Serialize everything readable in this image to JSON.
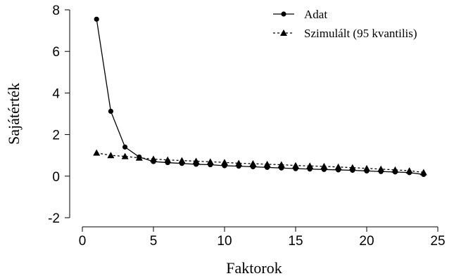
{
  "chart_data": {
    "type": "line",
    "xlabel": "Faktorok",
    "ylabel": "Sajátérték",
    "xlim": [
      0,
      25
    ],
    "ylim": [
      -2,
      8
    ],
    "xticks": [
      0,
      5,
      10,
      15,
      20,
      25
    ],
    "yticks": [
      -2,
      0,
      2,
      4,
      6,
      8
    ],
    "grid": false,
    "legend_position": "top-right",
    "x": [
      1,
      2,
      3,
      4,
      5,
      6,
      7,
      8,
      9,
      10,
      11,
      12,
      13,
      14,
      15,
      16,
      17,
      18,
      19,
      20,
      21,
      22,
      23,
      24
    ],
    "series": [
      {
        "name": "Adat",
        "marker": "circle",
        "line": "solid",
        "values": [
          7.55,
          3.12,
          1.4,
          0.92,
          0.7,
          0.65,
          0.61,
          0.57,
          0.55,
          0.5,
          0.48,
          0.45,
          0.42,
          0.39,
          0.36,
          0.34,
          0.32,
          0.3,
          0.28,
          0.25,
          0.22,
          0.2,
          0.17,
          0.08
        ]
      },
      {
        "name": "Szimulált (95 kvantilis)",
        "marker": "triangle",
        "line": "dashed",
        "values": [
          1.12,
          1.0,
          0.95,
          0.88,
          0.82,
          0.78,
          0.75,
          0.72,
          0.69,
          0.66,
          0.62,
          0.6,
          0.57,
          0.55,
          0.51,
          0.49,
          0.47,
          0.44,
          0.41,
          0.37,
          0.34,
          0.3,
          0.26,
          0.18
        ]
      }
    ]
  }
}
